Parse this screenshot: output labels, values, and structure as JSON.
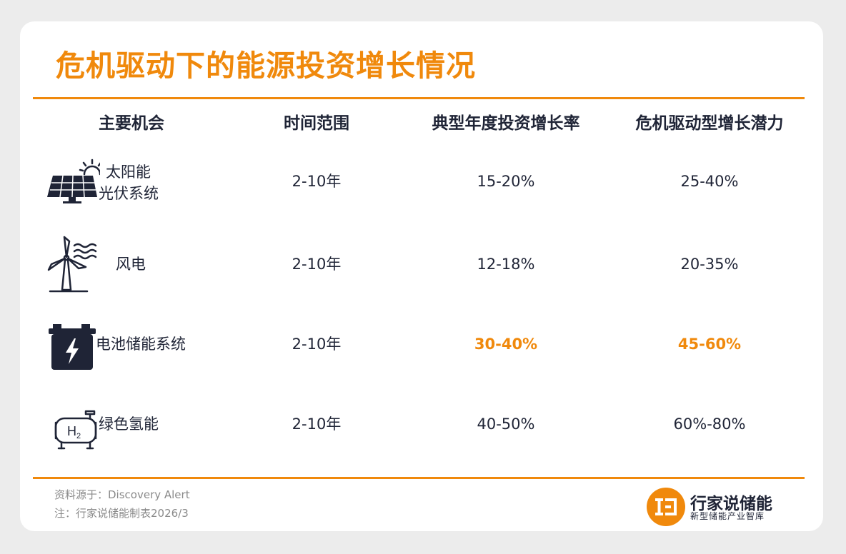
{
  "title": "危机驱动下的能源投资增长情况",
  "headers": [
    "主要机会",
    "时间范围",
    "典型年度投资增长率",
    "危机驱动型增长潜力"
  ],
  "rows": [
    {
      "name_line1": "太阳能",
      "name_line2": "光伏系统",
      "icon": "solar-panel-icon",
      "period": "2-10年",
      "growth": "15-20%",
      "potential": "25-40%",
      "highlight": false
    },
    {
      "name": "风电",
      "icon": "wind-turbine-icon",
      "period": "2-10年",
      "growth": "12-18%",
      "potential": "20-35%",
      "highlight": false
    },
    {
      "name": "电池储能系统",
      "icon": "battery-icon",
      "period": "2-10年",
      "growth": "30-40%",
      "potential": "45-60%",
      "highlight": true
    },
    {
      "name": "绿色氢能",
      "icon": "hydrogen-tank-icon",
      "period": "2-10年",
      "growth": "40-50%",
      "potential": "60%-80%",
      "highlight": false
    }
  ],
  "footer": {
    "source": "资料源于：Discovery Alert",
    "note": "注：行家说储能制表2026/3"
  },
  "brand": {
    "name": "行家说储能",
    "subtitle": "新型储能产业智库"
  },
  "colors": {
    "accent": "#f0890c",
    "text": "#1f2436",
    "muted": "#8a8a8a",
    "background": "#ececec"
  }
}
